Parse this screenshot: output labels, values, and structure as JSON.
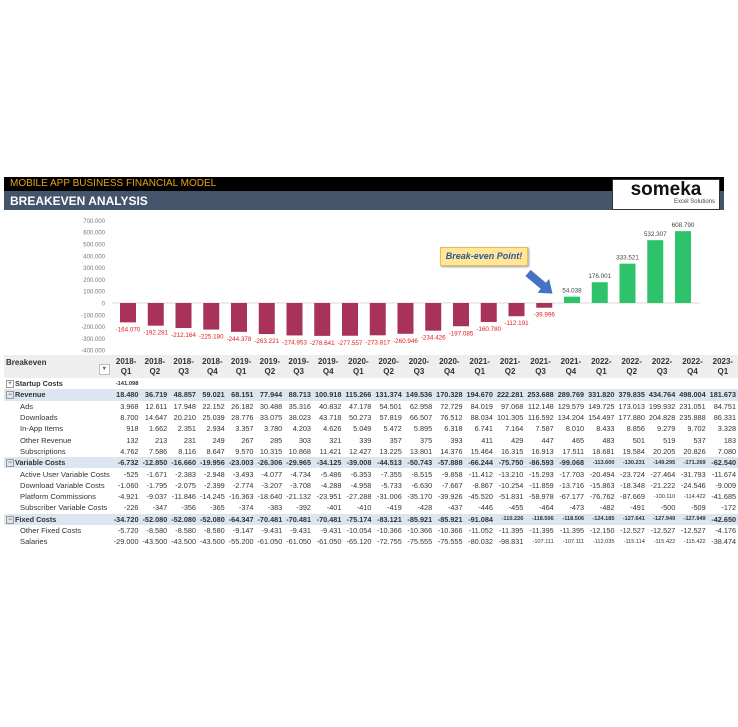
{
  "header": {
    "model_title": "MOBILE APP BUSINESS FINANCIAL MODEL",
    "page_title": "BREAKEVEN ANALYSIS"
  },
  "logo": {
    "name": "someka",
    "tagline": "Excel Solutions"
  },
  "callout": "Break-even Point!",
  "colors": {
    "negative": "#a8325a",
    "positive": "#2ec36a",
    "arrow": "#4472c4",
    "neg_label": "#e0201b"
  },
  "chart_data": {
    "type": "bar",
    "categories": [
      "2018-Q1",
      "2018-Q2",
      "2018-Q3",
      "2018-Q4",
      "2019-Q1",
      "2019-Q2",
      "2019-Q3",
      "2019-Q4",
      "2020-Q1",
      "2020-Q2",
      "2020-Q3",
      "2020-Q4",
      "2021-Q1",
      "2021-Q2",
      "2021-Q3",
      "2021-Q4",
      "2022-Q1",
      "2022-Q2",
      "2022-Q3",
      "2022-Q4",
      "2023-Q1"
    ],
    "values": [
      -164070,
      -192281,
      -212164,
      -225180,
      -244378,
      -263221,
      -274953,
      -278641,
      -277557,
      -273817,
      -260946,
      -234426,
      -197085,
      -160780,
      -112191,
      -39996,
      54038,
      176001,
      333521,
      532307,
      608790
    ],
    "value_labels": [
      "-164.070",
      "-192.281",
      "-212.164",
      "-225.180",
      "-244.378",
      "-263.221",
      "-274.953",
      "-278.641",
      "-277.557",
      "-273.817",
      "-260.946",
      "-234.426",
      "-197.085",
      "-160.780",
      "-112.191",
      "-39.996",
      "54.038",
      "176.001",
      "333.521",
      "532.307",
      "608.790"
    ],
    "yticks": [
      700000,
      600000,
      500000,
      400000,
      300000,
      200000,
      100000,
      0,
      -100000,
      -200000,
      -300000,
      -400000
    ],
    "ytick_labels": [
      "700.000",
      "600.000",
      "500.000",
      "400.000",
      "300.000",
      "200.000",
      "100.000",
      "0",
      "-100.000",
      "-200.000",
      "-300.000",
      "-400.000"
    ],
    "ylim": [
      -400000,
      700000
    ],
    "annotation": "Break-even Point!"
  },
  "table": {
    "title": "Breakeven",
    "columns": [
      [
        "2018-",
        "Q1"
      ],
      [
        "2018-",
        "Q2"
      ],
      [
        "2018-",
        "Q3"
      ],
      [
        "2018-",
        "Q4"
      ],
      [
        "2019-",
        "Q1"
      ],
      [
        "2019-",
        "Q2"
      ],
      [
        "2019-",
        "Q3"
      ],
      [
        "2019-",
        "Q4"
      ],
      [
        "2020-",
        "Q1"
      ],
      [
        "2020-",
        "Q2"
      ],
      [
        "2020-",
        "Q3"
      ],
      [
        "2020-",
        "Q4"
      ],
      [
        "2021-",
        "Q1"
      ],
      [
        "2021-",
        "Q2"
      ],
      [
        "2021-",
        "Q3"
      ],
      [
        "2021-",
        "Q4"
      ],
      [
        "2022-",
        "Q1"
      ],
      [
        "2022-",
        "Q2"
      ],
      [
        "2022-",
        "Q3"
      ],
      [
        "2022-",
        "Q4"
      ],
      [
        "2023-",
        "Q1"
      ]
    ],
    "rows": [
      {
        "label": "Startup Costs",
        "type": "startup",
        "expander": "+",
        "values": [
          "-141.098"
        ]
      },
      {
        "label": "Revenue",
        "type": "section",
        "expander": "-",
        "values": [
          "18.480",
          "36.719",
          "48.857",
          "59.021",
          "68.151",
          "77.944",
          "88.713",
          "100.918",
          "115.266",
          "131.374",
          "149.536",
          "170.328",
          "194.670",
          "222.281",
          "253.688",
          "289.769",
          "331.820",
          "379.835",
          "434.764",
          "498.004",
          "181.673"
        ]
      },
      {
        "label": "Ads",
        "type": "item",
        "values": [
          "3.968",
          "12.611",
          "17.948",
          "22.152",
          "26.182",
          "30.488",
          "35.316",
          "40.832",
          "47.178",
          "54.501",
          "62.958",
          "72.729",
          "84.019",
          "97.068",
          "112.148",
          "129.579",
          "149.725",
          "173.013",
          "199.932",
          "231.051",
          "84.751"
        ]
      },
      {
        "label": "Downloads",
        "type": "item",
        "values": [
          "8.700",
          "14.647",
          "20.210",
          "25.039",
          "28.776",
          "33.075",
          "38.023",
          "43.718",
          "50.273",
          "57.819",
          "66.507",
          "76.512",
          "88.034",
          "101.305",
          "116.592",
          "134.204",
          "154.497",
          "177.880",
          "204.828",
          "235.888",
          "86.331"
        ]
      },
      {
        "label": "In-App Items",
        "type": "item",
        "values": [
          "918",
          "1.662",
          "2.351",
          "2.934",
          "3.357",
          "3.780",
          "4.203",
          "4.626",
          "5.049",
          "5.472",
          "5.895",
          "6.318",
          "6.741",
          "7.164",
          "7.587",
          "8.010",
          "8.433",
          "8.856",
          "9.279",
          "9.702",
          "3.328"
        ]
      },
      {
        "label": "Other Revenue",
        "type": "item",
        "values": [
          "132",
          "213",
          "231",
          "249",
          "267",
          "285",
          "303",
          "321",
          "339",
          "357",
          "375",
          "393",
          "411",
          "429",
          "447",
          "465",
          "483",
          "501",
          "519",
          "537",
          "183"
        ]
      },
      {
        "label": "Subscriptions",
        "type": "item",
        "values": [
          "4.762",
          "7.586",
          "8.116",
          "8.647",
          "9.570",
          "10.315",
          "10.868",
          "11.421",
          "12.427",
          "13.225",
          "13.801",
          "14.376",
          "15.464",
          "16.315",
          "16.913",
          "17.511",
          "18.681",
          "19.584",
          "20.205",
          "20.826",
          "7.080"
        ]
      },
      {
        "label": "Variable Costs",
        "type": "section",
        "expander": "-",
        "values": [
          "-6.732",
          "-12.850",
          "-16.660",
          "-19.956",
          "-23.003",
          "-26.306",
          "-29.965",
          "-34.125",
          "-39.008",
          "-44.513",
          "-50.743",
          "-57.888",
          "-66.244",
          "-75.750",
          "-86.593",
          "-99.068",
          "-113.600",
          "-130.231",
          "-149.295",
          "-171.269",
          "-62.540"
        ]
      },
      {
        "label": "Active User Variable Costs",
        "type": "item",
        "values": [
          "-525",
          "-1.671",
          "-2.383",
          "-2.948",
          "-3.493",
          "-4.077",
          "-4.734",
          "-5.486",
          "-6.353",
          "-7.355",
          "-8.515",
          "-9.858",
          "-11.412",
          "-13.210",
          "-15.293",
          "-17.703",
          "-20.494",
          "-23.724",
          "-27.464",
          "-31.793",
          "-11.674"
        ]
      },
      {
        "label": "Download Variable Costs",
        "type": "item",
        "values": [
          "-1.060",
          "-1.795",
          "-2.075",
          "-2.399",
          "-2.774",
          "-3.207",
          "-3.708",
          "-4.288",
          "-4.958",
          "-5.733",
          "-6.630",
          "-7.667",
          "-8.867",
          "-10.254",
          "-11.859",
          "-13.716",
          "-15.863",
          "-18.348",
          "-21.222",
          "-24.546",
          "-9.009"
        ]
      },
      {
        "label": "Platform Commissions",
        "type": "item",
        "values": [
          "-4.921",
          "-9.037",
          "-11.846",
          "-14.245",
          "-16.363",
          "-18.640",
          "-21.132",
          "-23.951",
          "-27.288",
          "-31.006",
          "-35.170",
          "-39.926",
          "-45.520",
          "-51.831",
          "-58.978",
          "-67.177",
          "-76.762",
          "-87.669",
          "-100.110",
          "-114.422",
          "-41.685"
        ]
      },
      {
        "label": "Subscriber Variable Costs",
        "type": "item",
        "values": [
          "-226",
          "-347",
          "-356",
          "-365",
          "-374",
          "-383",
          "-392",
          "-401",
          "-410",
          "-419",
          "-428",
          "-437",
          "-446",
          "-455",
          "-464",
          "-473",
          "-482",
          "-491",
          "-500",
          "-509",
          "-172"
        ]
      },
      {
        "label": "Fixed Costs",
        "type": "section",
        "expander": "-",
        "values": [
          "-34.720",
          "-52.080",
          "-52.080",
          "-52.080",
          "-64.347",
          "-70.481",
          "-70.481",
          "-70.481",
          "-75.174",
          "-83.121",
          "-85.921",
          "-85.921",
          "-91.084",
          "-110.226",
          "-118.506",
          "-118.506",
          "-124.185",
          "-127.641",
          "-127.949",
          "-127.949",
          "-42.650"
        ]
      },
      {
        "label": "Other Fixed Costs",
        "type": "item",
        "values": [
          "-5.720",
          "-8.580",
          "-8.580",
          "-8.580",
          "-9.147",
          "-9.431",
          "-9.431",
          "-9.431",
          "-10.054",
          "-10.366",
          "-10.366",
          "-10.366",
          "-11.052",
          "-11.395",
          "-11.395",
          "-11.395",
          "-12.150",
          "-12.527",
          "-12.527",
          "-12.527",
          "-4.176"
        ]
      },
      {
        "label": "Salaries",
        "type": "item",
        "values": [
          "-29.000",
          "-43.500",
          "-43.500",
          "-43.500",
          "-55.200",
          "-61.050",
          "-61.050",
          "-61.050",
          "-65.120",
          "-72.755",
          "-75.555",
          "-75.555",
          "-80.032",
          "-98.831",
          "-107.111",
          "-107.111",
          "-112.035",
          "-115.114",
          "-115.422",
          "-115.422",
          "-38.474"
        ]
      }
    ]
  }
}
